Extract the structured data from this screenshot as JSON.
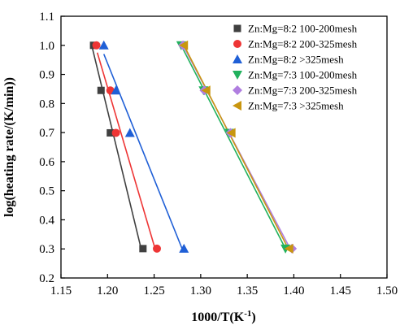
{
  "chart_data": {
    "type": "scatter",
    "xlabel": "1000/T(K",
    "xlabel_sup": "-1",
    "xlabel_close": ")",
    "ylabel": "log(heating rate/(K/min))",
    "xlim": [
      1.15,
      1.5
    ],
    "ylim": [
      0.2,
      1.1
    ],
    "xticks": [
      1.15,
      1.2,
      1.25,
      1.3,
      1.35,
      1.4,
      1.45,
      1.5
    ],
    "xtick_labels": [
      "1.15",
      "1.20",
      "1.25",
      "1.30",
      "1.35",
      "1.40",
      "1.45",
      "1.50"
    ],
    "yticks": [
      0.2,
      0.3,
      0.4,
      0.5,
      0.6,
      0.7,
      0.8,
      0.9,
      1.0,
      1.1
    ],
    "ytick_labels": [
      "0.2",
      "0.3",
      "0.4",
      "0.5",
      "0.6",
      "0.7",
      "0.8",
      "0.9",
      "1.0",
      "1.1"
    ],
    "grid": false,
    "legend_position": "top-right",
    "series": [
      {
        "name": "Zn:Mg=8:2 100-200mesh",
        "marker": "square",
        "color": "#404040",
        "points": [
          [
            1.185,
            1.0
          ],
          [
            1.193,
            0.845
          ],
          [
            1.203,
            0.699
          ],
          [
            1.238,
            0.301
          ]
        ],
        "fit": [
          [
            1.183,
            1.0
          ],
          [
            1.236,
            0.301
          ]
        ]
      },
      {
        "name": "Zn:Mg=8:2 200-325mesh",
        "marker": "circle",
        "color": "#ee3535",
        "points": [
          [
            1.188,
            1.0
          ],
          [
            1.203,
            0.845
          ],
          [
            1.209,
            0.699
          ],
          [
            1.253,
            0.301
          ]
        ],
        "fit": [
          [
            1.189,
            0.975
          ],
          [
            1.251,
            0.301
          ]
        ]
      },
      {
        "name": "Zn:Mg=8:2 >325mesh",
        "marker": "triangle-up",
        "color": "#1f5fd6",
        "points": [
          [
            1.196,
            1.0
          ],
          [
            1.209,
            0.845
          ],
          [
            1.224,
            0.699
          ],
          [
            1.282,
            0.301
          ]
        ],
        "fit": [
          [
            1.196,
            0.97
          ],
          [
            1.28,
            0.301
          ]
        ]
      },
      {
        "name": "Zn:Mg=7:3 100-200mesh",
        "marker": "triangle-down",
        "color": "#21b15d",
        "points": [
          [
            1.279,
            1.0
          ],
          [
            1.303,
            0.845
          ],
          [
            1.331,
            0.699
          ],
          [
            1.391,
            0.301
          ]
        ],
        "fit": [
          [
            1.279,
            1.0
          ],
          [
            1.391,
            0.301
          ]
        ]
      },
      {
        "name": "Zn:Mg=7:3 200-325mesh",
        "marker": "diamond",
        "color": "#b07ee0",
        "points": [
          [
            1.281,
            1.0
          ],
          [
            1.304,
            0.845
          ],
          [
            1.332,
            0.699
          ],
          [
            1.398,
            0.301
          ]
        ],
        "fit": [
          [
            1.281,
            1.0
          ],
          [
            1.396,
            0.301
          ]
        ]
      },
      {
        "name": "Zn:Mg=7:3 >325mesh",
        "marker": "triangle-left",
        "color": "#c9960f",
        "points": [
          [
            1.282,
            1.0
          ],
          [
            1.306,
            0.845
          ],
          [
            1.333,
            0.699
          ],
          [
            1.395,
            0.301
          ]
        ],
        "fit": [
          [
            1.282,
            1.0
          ],
          [
            1.394,
            0.301
          ]
        ]
      }
    ]
  }
}
